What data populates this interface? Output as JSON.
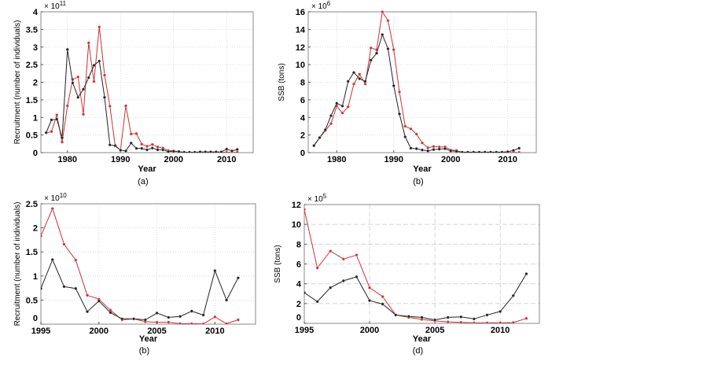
{
  "colors": {
    "black_series": "#222222",
    "red_series": "#d03030",
    "grid": "#cfcfcf",
    "axis": "#888888"
  },
  "chart_data": [
    {
      "type": "line",
      "caption": "(a)",
      "xlabel": "Year",
      "ylabel": "Recruitment (number of individuals)",
      "y_multiplier": "× 10",
      "y_exponent": "11",
      "xlim": [
        1975,
        2015
      ],
      "ylim": [
        0,
        4
      ],
      "xticks": [
        1980,
        1990,
        2000,
        2010
      ],
      "yticks": [
        0,
        0.5,
        1,
        1.5,
        2,
        2.5,
        3,
        3.5,
        4
      ],
      "ytick_labels": [
        "0",
        "0.5",
        "1",
        "1.5",
        "2",
        "2.5",
        "3",
        "3.5",
        "4"
      ],
      "grid": "dotted",
      "x": [
        1976,
        1977,
        1978,
        1979,
        1980,
        1981,
        1982,
        1983,
        1984,
        1985,
        1986,
        1987,
        1988,
        1989,
        1990,
        1991,
        1992,
        1993,
        1994,
        1995,
        1996,
        1997,
        1998,
        1999,
        2000,
        2001,
        2002,
        2003,
        2004,
        2005,
        2006,
        2007,
        2008,
        2009,
        2010,
        2011,
        2012
      ],
      "series": [
        {
          "name": "black",
          "color": "#222222",
          "values": [
            0.57,
            0.93,
            0.95,
            0.42,
            2.93,
            1.98,
            1.57,
            1.8,
            2.13,
            2.48,
            2.6,
            1.57,
            0.22,
            0.2,
            0.07,
            0.05,
            0.27,
            0.12,
            0.12,
            0.08,
            0.13,
            0.08,
            0.08,
            0.03,
            0.04,
            0.03,
            0.01,
            0.01,
            0.01,
            0.02,
            0.02,
            0.02,
            0.02,
            0.02,
            0.1,
            0.05,
            0.09
          ]
        },
        {
          "name": "red",
          "color": "#d03030",
          "values": [
            0.56,
            0.6,
            1.07,
            0.3,
            1.33,
            2.08,
            2.15,
            1.09,
            3.12,
            2.02,
            3.57,
            2.2,
            1.32,
            0.19,
            0.07,
            1.33,
            0.53,
            0.54,
            0.24,
            0.18,
            0.23,
            0.16,
            0.13,
            0.06,
            0.05,
            0.03,
            0.01,
            0.01,
            0.01,
            0.01,
            0.01,
            0.01,
            0.01,
            0.01,
            0.01,
            0.01,
            0.01
          ]
        }
      ]
    },
    {
      "type": "line",
      "caption": "(b)",
      "xlabel": "Year",
      "ylabel": "SSB (tons)",
      "y_multiplier": "× 10",
      "y_exponent": "6",
      "xlim": [
        1975,
        2015
      ],
      "ylim": [
        0,
        16
      ],
      "xticks": [
        1980,
        1990,
        2000,
        2010
      ],
      "yticks": [
        0,
        2,
        4,
        6,
        8,
        10,
        12,
        14,
        16
      ],
      "ytick_labels": [
        "0",
        "2",
        "4",
        "6",
        "8",
        "10",
        "12",
        "14",
        "16"
      ],
      "grid": "dotted",
      "x": [
        1976,
        1977,
        1978,
        1979,
        1980,
        1981,
        1982,
        1983,
        1984,
        1985,
        1986,
        1987,
        1988,
        1989,
        1990,
        1991,
        1992,
        1993,
        1994,
        1995,
        1996,
        1997,
        1998,
        1999,
        2000,
        2001,
        2002,
        2003,
        2004,
        2005,
        2006,
        2007,
        2008,
        2009,
        2010,
        2011,
        2012
      ],
      "series": [
        {
          "name": "black",
          "color": "#222222",
          "values": [
            0.8,
            1.7,
            2.6,
            4.2,
            5.6,
            5.3,
            8.1,
            9.1,
            8.4,
            8.1,
            10.5,
            11.3,
            13.4,
            11.8,
            7.6,
            4.4,
            1.8,
            0.5,
            0.45,
            0.3,
            0.2,
            0.35,
            0.4,
            0.45,
            0.2,
            0.15,
            0.05,
            0.05,
            0.05,
            0.05,
            0.05,
            0.05,
            0.05,
            0.05,
            0.1,
            0.25,
            0.5
          ]
        },
        {
          "name": "red",
          "color": "#d03030",
          "values": [
            0.8,
            1.7,
            2.5,
            3.3,
            5.3,
            4.5,
            5.2,
            7.8,
            8.9,
            7.8,
            11.9,
            11.7,
            16.0,
            15.0,
            11.7,
            6.9,
            3.0,
            2.7,
            2.1,
            1.1,
            0.55,
            0.7,
            0.65,
            0.65,
            0.3,
            0.25,
            0.03,
            0.03,
            0.03,
            0.03,
            0.03,
            0.03,
            0.03,
            0.03,
            0.03,
            0.03,
            0.03
          ]
        }
      ]
    },
    {
      "type": "line",
      "caption": "(b)",
      "xlabel": "Year",
      "ylabel": "Recruitment (number of individuals)",
      "y_multiplier": "× 10",
      "y_exponent": "10",
      "xlim": [
        1995,
        2013.5
      ],
      "ylim": [
        0,
        2.5
      ],
      "xticks": [
        1995,
        2000,
        2005,
        2010
      ],
      "yticks": [
        0,
        0.5,
        1,
        1.5,
        2,
        2.5
      ],
      "ytick_labels": [
        "0",
        "0.5",
        "1",
        "1.5",
        "2",
        "2.5"
      ],
      "grid": "dotted",
      "x": [
        1995,
        1996,
        1997,
        1998,
        1999,
        2000,
        2001,
        2002,
        2003,
        2004,
        2005,
        2006,
        2007,
        2008,
        2009,
        2010,
        2011,
        2012
      ],
      "series": [
        {
          "name": "black",
          "color": "#222222",
          "values": [
            0.74,
            1.34,
            0.78,
            0.74,
            0.26,
            0.48,
            0.24,
            0.11,
            0.11,
            0.09,
            0.23,
            0.14,
            0.16,
            0.27,
            0.19,
            1.11,
            0.5,
            0.96
          ]
        },
        {
          "name": "red",
          "color": "#d03030",
          "values": [
            1.83,
            2.4,
            1.66,
            1.33,
            0.6,
            0.52,
            0.29,
            0.09,
            0.11,
            0.05,
            0.04,
            0.04,
            0.01,
            0.01,
            0.005,
            0.15,
            0.01,
            0.09
          ]
        }
      ]
    },
    {
      "type": "line",
      "caption": "(d)",
      "xlabel": "Year",
      "ylabel": "SSB (tons)",
      "y_multiplier": "× 10",
      "y_exponent": "5",
      "xlim": [
        1995,
        2013
      ],
      "ylim": [
        0,
        12
      ],
      "xticks": [
        1995,
        2000,
        2005,
        2010
      ],
      "yticks": [
        0,
        2,
        4,
        6,
        8,
        10,
        12
      ],
      "ytick_labels": [
        "0",
        "2",
        "4",
        "6",
        "8",
        "10",
        "12"
      ],
      "grid": "dashed",
      "x": [
        1995,
        1996,
        1997,
        1998,
        1999,
        2000,
        2001,
        2002,
        2003,
        2004,
        2005,
        2006,
        2007,
        2008,
        2009,
        2010,
        2011,
        2012
      ],
      "series": [
        {
          "name": "black",
          "color": "#222222",
          "values": [
            3.1,
            2.2,
            3.6,
            4.3,
            4.7,
            2.3,
            1.95,
            0.85,
            0.7,
            0.6,
            0.35,
            0.6,
            0.65,
            0.45,
            0.85,
            1.2,
            2.8,
            5.0
          ]
        },
        {
          "name": "red",
          "color": "#d03030",
          "values": [
            11.5,
            5.6,
            7.3,
            6.5,
            6.9,
            3.6,
            2.7,
            0.85,
            0.6,
            0.4,
            0.25,
            0.15,
            0.1,
            0.05,
            0.05,
            0.05,
            0.08,
            0.5
          ]
        }
      ]
    }
  ]
}
